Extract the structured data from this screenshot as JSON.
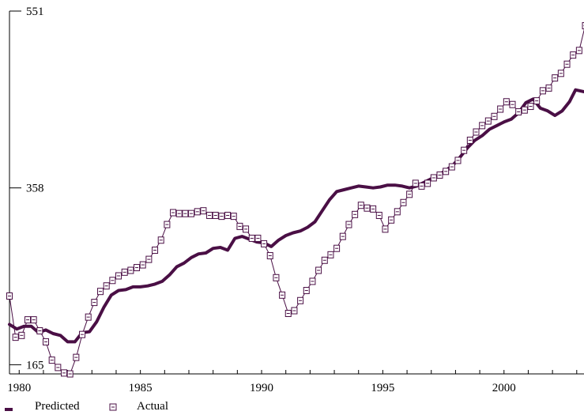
{
  "colors": {
    "series": "#4a0f45",
    "axis": "#000000"
  },
  "chart_data": {
    "type": "line",
    "title": "",
    "xlabel": "",
    "ylabel": "",
    "xlim": [
      1979.6,
      2003.3
    ],
    "ylim": [
      155,
      551
    ],
    "x_ticks": [
      1980,
      1985,
      1990,
      1995,
      2000
    ],
    "x_tick_labels": [
      "1980",
      "1985",
      "1990",
      "1995",
      "2000"
    ],
    "y_ticks": [
      165,
      358,
      551
    ],
    "y_tick_labels": [
      "165",
      "358",
      "551"
    ],
    "grid": false,
    "legend_position": "bottom-left",
    "series": [
      {
        "name": "Predicted",
        "style": "thick-line",
        "points": [
          [
            1979.6,
            209
          ],
          [
            1979.9,
            204
          ],
          [
            1980.2,
            207
          ],
          [
            1980.5,
            207
          ],
          [
            1980.8,
            200
          ],
          [
            1981.1,
            203
          ],
          [
            1981.4,
            199
          ],
          [
            1981.7,
            197
          ],
          [
            1982.0,
            190
          ],
          [
            1982.3,
            190
          ],
          [
            1982.6,
            200
          ],
          [
            1982.9,
            201
          ],
          [
            1983.2,
            212
          ],
          [
            1983.5,
            228
          ],
          [
            1983.8,
            241
          ],
          [
            1984.1,
            246
          ],
          [
            1984.4,
            247
          ],
          [
            1984.7,
            250
          ],
          [
            1985.0,
            250
          ],
          [
            1985.3,
            251
          ],
          [
            1985.6,
            253
          ],
          [
            1985.9,
            256
          ],
          [
            1986.2,
            263
          ],
          [
            1986.5,
            272
          ],
          [
            1986.8,
            276
          ],
          [
            1987.1,
            282
          ],
          [
            1987.4,
            286
          ],
          [
            1987.7,
            287
          ],
          [
            1988.0,
            292
          ],
          [
            1988.3,
            293
          ],
          [
            1988.6,
            290
          ],
          [
            1988.9,
            303
          ],
          [
            1989.2,
            305
          ],
          [
            1989.5,
            302
          ],
          [
            1989.8,
            299
          ],
          [
            1990.1,
            298
          ],
          [
            1990.4,
            294
          ],
          [
            1990.7,
            301
          ],
          [
            1991.0,
            306
          ],
          [
            1991.3,
            309
          ],
          [
            1991.6,
            311
          ],
          [
            1991.9,
            315
          ],
          [
            1992.2,
            321
          ],
          [
            1992.5,
            333
          ],
          [
            1992.8,
            345
          ],
          [
            1993.1,
            354
          ],
          [
            1993.4,
            356
          ],
          [
            1993.7,
            358
          ],
          [
            1994.0,
            360
          ],
          [
            1994.3,
            359
          ],
          [
            1994.6,
            358
          ],
          [
            1994.9,
            359
          ],
          [
            1995.2,
            361
          ],
          [
            1995.5,
            361
          ],
          [
            1995.8,
            360
          ],
          [
            1996.1,
            358
          ],
          [
            1996.4,
            360
          ],
          [
            1996.7,
            364
          ],
          [
            1997.0,
            368
          ],
          [
            1997.3,
            372
          ],
          [
            1997.6,
            377
          ],
          [
            1997.9,
            383
          ],
          [
            1998.2,
            392
          ],
          [
            1998.5,
            402
          ],
          [
            1998.8,
            410
          ],
          [
            1999.1,
            415
          ],
          [
            1999.4,
            422
          ],
          [
            1999.7,
            426
          ],
          [
            2000.0,
            430
          ],
          [
            2000.3,
            433
          ],
          [
            2000.6,
            440
          ],
          [
            2000.9,
            451
          ],
          [
            2001.2,
            455
          ],
          [
            2001.5,
            445
          ],
          [
            2001.8,
            442
          ],
          [
            2002.1,
            437
          ],
          [
            2002.4,
            442
          ],
          [
            2002.7,
            452
          ],
          [
            2002.95,
            465
          ],
          [
            2003.3,
            463
          ]
        ]
      },
      {
        "name": "Actual",
        "style": "thin-line-square-markers",
        "points": [
          [
            1979.6,
            240
          ],
          [
            1979.85,
            195
          ],
          [
            1980.1,
            197
          ],
          [
            1980.35,
            214
          ],
          [
            1980.6,
            214
          ],
          [
            1980.85,
            202
          ],
          [
            1981.1,
            190
          ],
          [
            1981.35,
            170
          ],
          [
            1981.6,
            162
          ],
          [
            1981.85,
            156
          ],
          [
            1982.1,
            155
          ],
          [
            1982.35,
            173
          ],
          [
            1982.6,
            198
          ],
          [
            1982.85,
            217
          ],
          [
            1983.1,
            233
          ],
          [
            1983.35,
            245
          ],
          [
            1983.6,
            251
          ],
          [
            1983.85,
            257
          ],
          [
            1984.1,
            262
          ],
          [
            1984.35,
            266
          ],
          [
            1984.6,
            268
          ],
          [
            1984.85,
            271
          ],
          [
            1985.1,
            274
          ],
          [
            1985.35,
            280
          ],
          [
            1985.6,
            290
          ],
          [
            1985.85,
            301
          ],
          [
            1986.1,
            318
          ],
          [
            1986.35,
            331
          ],
          [
            1986.6,
            330
          ],
          [
            1986.85,
            330
          ],
          [
            1987.1,
            330
          ],
          [
            1987.35,
            332
          ],
          [
            1987.6,
            333
          ],
          [
            1987.85,
            328
          ],
          [
            1988.1,
            328
          ],
          [
            1988.35,
            327
          ],
          [
            1988.6,
            328
          ],
          [
            1988.85,
            327
          ],
          [
            1989.1,
            316
          ],
          [
            1989.35,
            313
          ],
          [
            1989.6,
            303
          ],
          [
            1989.85,
            303
          ],
          [
            1990.1,
            297
          ],
          [
            1990.35,
            284
          ],
          [
            1990.6,
            260
          ],
          [
            1990.85,
            241
          ],
          [
            1991.1,
            221
          ],
          [
            1991.35,
            224
          ],
          [
            1991.6,
            235
          ],
          [
            1991.85,
            246
          ],
          [
            1992.1,
            256
          ],
          [
            1992.35,
            268
          ],
          [
            1992.6,
            279
          ],
          [
            1992.85,
            285
          ],
          [
            1993.1,
            292
          ],
          [
            1993.35,
            305
          ],
          [
            1993.6,
            318
          ],
          [
            1993.85,
            329
          ],
          [
            1994.1,
            339
          ],
          [
            1994.35,
            336
          ],
          [
            1994.6,
            335
          ],
          [
            1994.85,
            328
          ],
          [
            1995.1,
            313
          ],
          [
            1995.35,
            323
          ],
          [
            1995.6,
            332
          ],
          [
            1995.85,
            342
          ],
          [
            1996.1,
            351
          ],
          [
            1996.35,
            363
          ],
          [
            1996.6,
            360
          ],
          [
            1996.85,
            363
          ],
          [
            1997.1,
            369
          ],
          [
            1997.35,
            372
          ],
          [
            1997.6,
            376
          ],
          [
            1997.85,
            381
          ],
          [
            1998.1,
            388
          ],
          [
            1998.35,
            399
          ],
          [
            1998.6,
            410
          ],
          [
            1998.85,
            419
          ],
          [
            1999.1,
            426
          ],
          [
            1999.35,
            431
          ],
          [
            1999.6,
            436
          ],
          [
            1999.85,
            444
          ],
          [
            2000.1,
            452
          ],
          [
            2000.35,
            449
          ],
          [
            2000.6,
            441
          ],
          [
            2000.85,
            443
          ],
          [
            2001.1,
            447
          ],
          [
            2001.35,
            453
          ],
          [
            2001.6,
            464
          ],
          [
            2001.85,
            467
          ],
          [
            2002.1,
            478
          ],
          [
            2002.35,
            483
          ],
          [
            2002.6,
            493
          ],
          [
            2002.85,
            503
          ],
          [
            2003.1,
            508
          ],
          [
            2003.35,
            535
          ]
        ]
      }
    ]
  }
}
